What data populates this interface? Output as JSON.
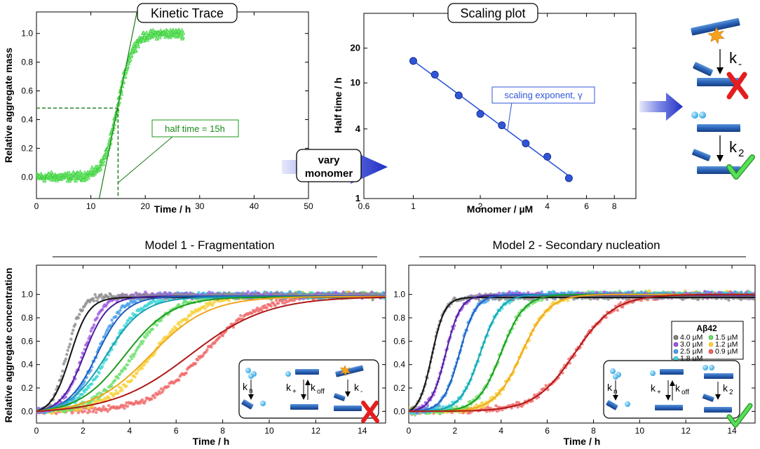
{
  "colors": {
    "trace_green": "#3ecf3e",
    "trace_dark": "#1a7a1a",
    "scaling_blue": "#2f56d9",
    "fibril_blue": "#2a63b8",
    "cross_red": "#e41e1e",
    "check_green": "#3cd63c",
    "arrow_blue": "#2a35c9"
  },
  "chart_data": [
    {
      "id": "kinetic_trace",
      "type": "scatter",
      "title": "Kinetic Trace",
      "xlabel": "Time / h",
      "ylabel": "Relative aggregate mass",
      "xlim": [
        0,
        50
      ],
      "ylim": [
        -0.15,
        1.15
      ],
      "xticks": [
        0,
        10,
        20,
        30,
        40,
        50
      ],
      "xtick_labels": [
        "0",
        "10",
        "20",
        "30",
        "40",
        "50"
      ],
      "yticks": [
        0.0,
        0.2,
        0.4,
        0.6,
        0.8,
        1.0
      ],
      "ytick_labels": [
        "0.0",
        "0.2",
        "0.4",
        "0.6",
        "0.8",
        "1.0"
      ],
      "sigmoid": {
        "t_half": 15,
        "k": 0.75,
        "x_start": 0,
        "x_end": 27
      },
      "half_time": 15,
      "half_value": 0.48,
      "annotation": "half time = 15h"
    },
    {
      "id": "scaling_plot",
      "type": "scatter",
      "title": "Scaling plot",
      "xlabel": "Monomer / µM",
      "ylabel": "Half time / h",
      "xscale": "log",
      "yscale": "log",
      "xlim": [
        0.6,
        10
      ],
      "ylim": [
        1,
        40
      ],
      "xticks": [
        0.6,
        1,
        2,
        4,
        6,
        8
      ],
      "xtick_labels": [
        "0.6",
        "1",
        "2",
        "4",
        "6",
        "8"
      ],
      "yticks": [
        1,
        4,
        10,
        20
      ],
      "ytick_labels": [
        "1",
        "4",
        "10",
        "20"
      ],
      "x": [
        1.0,
        1.25,
        1.6,
        2.0,
        2.5,
        3.2,
        4.0,
        5.0
      ],
      "y": [
        15.5,
        11.8,
        7.8,
        5.4,
        4.3,
        3.0,
        2.3,
        1.5
      ],
      "annotation": "scaling exponent, γ"
    },
    {
      "id": "model1",
      "type": "line",
      "title": "Model 1 - Fragmentation",
      "xlabel": "Time / h",
      "ylabel": "Relative aggregate concentration",
      "xlim": [
        0,
        15
      ],
      "ylim": [
        -0.1,
        1.25
      ],
      "xticks": [
        0,
        2,
        4,
        6,
        8,
        10,
        12,
        14
      ],
      "xtick_labels": [
        "0",
        "2",
        "4",
        "6",
        "8",
        "10",
        "12",
        "14"
      ],
      "yticks": [
        0.0,
        0.2,
        0.4,
        0.6,
        0.8,
        1.0
      ],
      "ytick_labels": [
        "0.0",
        "0.2",
        "0.4",
        "0.6",
        "0.8",
        "1.0"
      ],
      "series": [
        {
          "name": "4.0 µM",
          "data_t_half": 1.3,
          "data_k": 3.2,
          "fit_t_half": 1.45,
          "fit_k": 2.5,
          "color": "#8c8c8c",
          "fit_color": "#111111"
        },
        {
          "name": "3.0 µM",
          "data_t_half": 2.0,
          "data_k": 2.4,
          "fit_t_half": 2.05,
          "fit_k": 2.0,
          "color": "#a05ae0",
          "fit_color": "#4b1f9e"
        },
        {
          "name": "2.5 µM",
          "data_t_half": 2.6,
          "data_k": 1.9,
          "fit_t_half": 2.6,
          "fit_k": 1.6,
          "color": "#4aa0ea",
          "fit_color": "#1f5cc0"
        },
        {
          "name": "1.8 µM",
          "data_t_half": 3.1,
          "data_k": 1.5,
          "fit_t_half": 3.0,
          "fit_k": 1.25,
          "color": "#3fd6d6",
          "fit_color": "#1a9fb0"
        },
        {
          "name": "1.5 µM",
          "data_t_half": 4.2,
          "data_k": 1.2,
          "fit_t_half": 3.8,
          "fit_k": 1.0,
          "color": "#6ee06e",
          "fit_color": "#1f9a1f"
        },
        {
          "name": "1.2 µM",
          "data_t_half": 5.0,
          "data_k": 1.0,
          "fit_t_half": 4.9,
          "fit_k": 0.8,
          "color": "#f7d23c",
          "fit_color": "#f0a51c"
        },
        {
          "name": "0.9 µM",
          "data_t_half": 7.2,
          "data_k": 0.85,
          "fit_t_half": 6.6,
          "fit_k": 0.6,
          "color": "#f06b6b",
          "fit_color": "#b01818"
        }
      ],
      "inset_labels": [
        "k",
        "n",
        "k",
        "+",
        "k",
        "off",
        "k",
        "-"
      ],
      "verdict": "rejected"
    },
    {
      "id": "model2",
      "type": "line",
      "title": "Model 2 - Secondary nucleation",
      "xlabel": "Time / h",
      "ylabel": "",
      "xlim": [
        0,
        15
      ],
      "ylim": [
        -0.1,
        1.25
      ],
      "xticks": [
        0,
        2,
        4,
        6,
        8,
        10,
        12,
        14
      ],
      "xtick_labels": [
        "0",
        "2",
        "4",
        "6",
        "8",
        "10",
        "12",
        "14"
      ],
      "yticks": [
        0.0,
        0.2,
        0.4,
        0.6,
        0.8,
        1.0
      ],
      "ytick_labels": [
        "0.0",
        "0.2",
        "0.4",
        "0.6",
        "0.8",
        "1.0"
      ],
      "series": [
        {
          "name": "4.0 µM",
          "data_t_half": 1.0,
          "data_k": 3.6,
          "fit_t_half": 1.0,
          "fit_k": 3.6,
          "color": "#8c8c8c",
          "fit_color": "#111111"
        },
        {
          "name": "3.0 µM",
          "data_t_half": 1.6,
          "data_k": 3.1,
          "fit_t_half": 1.6,
          "fit_k": 3.1,
          "color": "#a05ae0",
          "fit_color": "#4b1f9e"
        },
        {
          "name": "2.5 µM",
          "data_t_half": 2.2,
          "data_k": 2.8,
          "fit_t_half": 2.2,
          "fit_k": 2.8,
          "color": "#4aa0ea",
          "fit_color": "#1f5cc0"
        },
        {
          "name": "1.8 µM",
          "data_t_half": 3.1,
          "data_k": 2.3,
          "fit_t_half": 3.1,
          "fit_k": 2.3,
          "color": "#3fd6d6",
          "fit_color": "#1a9fb0"
        },
        {
          "name": "1.5 µM",
          "data_t_half": 4.0,
          "data_k": 2.0,
          "fit_t_half": 4.0,
          "fit_k": 2.0,
          "color": "#6ee06e",
          "fit_color": "#1f9a1f"
        },
        {
          "name": "1.2 µM",
          "data_t_half": 4.9,
          "data_k": 1.7,
          "fit_t_half": 4.9,
          "fit_k": 1.7,
          "color": "#f7d23c",
          "fit_color": "#f0a51c"
        },
        {
          "name": "0.9 µM",
          "data_t_half": 7.2,
          "data_k": 1.15,
          "fit_t_half": 7.2,
          "fit_k": 1.15,
          "color": "#f06b6b",
          "fit_color": "#b01818"
        }
      ],
      "legend_title": "Aβ42",
      "inset_labels": [
        "k",
        "n",
        "k",
        "+",
        "k",
        "off",
        "k",
        "2"
      ],
      "verdict": "accepted"
    }
  ],
  "center_arrow": {
    "line1": "vary",
    "line2": "monomer"
  },
  "mechanism": {
    "top_rate": "k",
    "top_sub": "-",
    "bottom_rate": "k",
    "bottom_sub": "2"
  }
}
